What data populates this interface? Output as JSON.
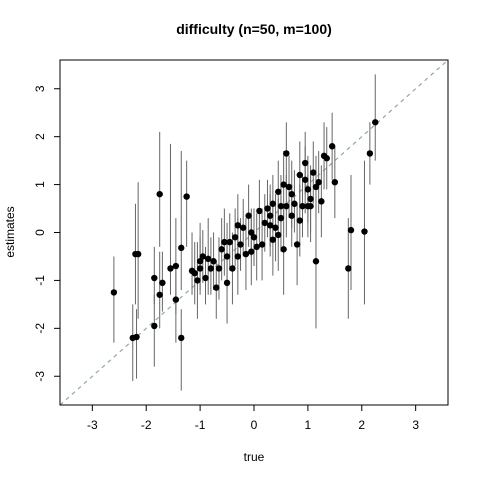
{
  "chart_data": {
    "type": "scatter",
    "title": "difficulty (n=50, m=100)",
    "xlabel": "true",
    "ylabel": "estimates",
    "xlim": [
      -3.6,
      3.6
    ],
    "ylim": [
      -3.6,
      3.6
    ],
    "x_ticks": [
      -3,
      -2,
      -1,
      0,
      1,
      2,
      3
    ],
    "y_ticks": [
      -3,
      -2,
      -1,
      0,
      1,
      2,
      3
    ],
    "x_tick_labels": [
      "-3",
      "-2",
      "-1",
      "0",
      "1",
      "2",
      "3"
    ],
    "y_tick_labels": [
      "-3",
      "-2",
      "-1",
      "0",
      "1",
      "2",
      "3"
    ],
    "grid": false,
    "reference_line": {
      "slope": 1,
      "intercept": 0,
      "style": "dashed",
      "color": "#8fa8a8"
    },
    "point_color": "#000000",
    "errorbar_color": "#666666",
    "points": [
      {
        "x": -2.6,
        "y": -1.25,
        "lo": -2.3,
        "hi": -0.5
      },
      {
        "x": -2.25,
        "y": -2.2,
        "lo": -3.1,
        "hi": -1.5
      },
      {
        "x": -2.18,
        "y": -2.18,
        "lo": -3.05,
        "hi": -1.6
      },
      {
        "x": -2.2,
        "y": -0.45,
        "lo": -1.5,
        "hi": 0.6
      },
      {
        "x": -2.15,
        "y": -0.45,
        "lo": -1.8,
        "hi": 1.05
      },
      {
        "x": -1.85,
        "y": -1.95,
        "lo": -2.8,
        "hi": -1.3
      },
      {
        "x": -1.85,
        "y": -0.95,
        "lo": -1.5,
        "hi": -0.3
      },
      {
        "x": -1.75,
        "y": 0.8,
        "lo": -0.3,
        "hi": 2.1
      },
      {
        "x": -1.75,
        "y": -1.3,
        "lo": -2.0,
        "hi": -0.4
      },
      {
        "x": -1.7,
        "y": -1.05,
        "lo": -1.65,
        "hi": -0.4
      },
      {
        "x": -1.55,
        "y": -0.75,
        "lo": -1.3,
        "hi": 1.85
      },
      {
        "x": -1.45,
        "y": -0.7,
        "lo": -1.7,
        "hi": 0.3
      },
      {
        "x": -1.45,
        "y": -1.4,
        "lo": -2.3,
        "hi": -0.8
      },
      {
        "x": -1.35,
        "y": -0.32,
        "lo": -1.2,
        "hi": 1.7
      },
      {
        "x": -1.35,
        "y": -2.2,
        "lo": -3.3,
        "hi": -1.6
      },
      {
        "x": -1.25,
        "y": 0.75,
        "lo": -0.3,
        "hi": 1.5
      },
      {
        "x": -1.15,
        "y": -0.8,
        "lo": -1.3,
        "hi": 0.0
      },
      {
        "x": -1.1,
        "y": -0.85,
        "lo": -1.5,
        "hi": -0.2
      },
      {
        "x": -1.05,
        "y": -1.0,
        "lo": -1.8,
        "hi": -0.2
      },
      {
        "x": -1.0,
        "y": -0.6,
        "lo": -1.2,
        "hi": 0.2
      },
      {
        "x": -0.95,
        "y": -0.5,
        "lo": -1.05,
        "hi": 0.05
      },
      {
        "x": -0.9,
        "y": -0.95,
        "lo": -1.5,
        "hi": -0.3
      },
      {
        "x": -0.85,
        "y": -0.55,
        "lo": -1.3,
        "hi": 0.3
      },
      {
        "x": -0.8,
        "y": -0.75,
        "lo": -1.3,
        "hi": -0.1
      },
      {
        "x": -0.75,
        "y": -0.6,
        "lo": -1.2,
        "hi": 0.0
      },
      {
        "x": -0.7,
        "y": -1.15,
        "lo": -1.8,
        "hi": -0.6
      },
      {
        "x": -0.65,
        "y": -0.75,
        "lo": -1.4,
        "hi": -0.1
      },
      {
        "x": -0.55,
        "y": -0.2,
        "lo": -0.9,
        "hi": 0.5
      },
      {
        "x": -0.5,
        "y": -0.5,
        "lo": -1.2,
        "hi": 0.2
      },
      {
        "x": -0.5,
        "y": -1.05,
        "lo": -1.9,
        "hi": -0.2
      },
      {
        "x": -0.45,
        "y": -0.2,
        "lo": -0.8,
        "hi": 0.4
      },
      {
        "x": -0.4,
        "y": -0.75,
        "lo": -1.5,
        "hi": 0.0
      },
      {
        "x": -0.35,
        "y": -0.1,
        "lo": -0.7,
        "hi": 0.5
      },
      {
        "x": -0.3,
        "y": -0.5,
        "lo": -1.3,
        "hi": 0.3
      },
      {
        "x": -0.25,
        "y": -0.25,
        "lo": -0.8,
        "hi": 0.3
      },
      {
        "x": -0.2,
        "y": 0.1,
        "lo": -0.5,
        "hi": 0.7
      },
      {
        "x": -0.15,
        "y": -0.45,
        "lo": -1.2,
        "hi": 0.3
      },
      {
        "x": -0.1,
        "y": 0.35,
        "lo": -0.3,
        "hi": 1.0
      },
      {
        "x": -0.05,
        "y": 0.0,
        "lo": -0.5,
        "hi": 0.5
      },
      {
        "x": 0.0,
        "y": -0.1,
        "lo": -0.7,
        "hi": 0.5
      },
      {
        "x": 0.05,
        "y": -0.3,
        "lo": -1.0,
        "hi": 0.4
      },
      {
        "x": 0.1,
        "y": 0.45,
        "lo": -0.2,
        "hi": 1.1
      },
      {
        "x": 0.15,
        "y": -0.25,
        "lo": -1.0,
        "hi": 0.5
      },
      {
        "x": 0.2,
        "y": 0.2,
        "lo": -0.4,
        "hi": 0.8
      },
      {
        "x": 0.25,
        "y": 0.5,
        "lo": -0.1,
        "hi": 1.1
      },
      {
        "x": 0.3,
        "y": 0.15,
        "lo": -0.5,
        "hi": 0.8
      },
      {
        "x": 0.35,
        "y": 0.6,
        "lo": 0.0,
        "hi": 1.2
      },
      {
        "x": 0.4,
        "y": 0.1,
        "lo": -0.6,
        "hi": 0.8
      },
      {
        "x": 0.45,
        "y": 0.85,
        "lo": 0.2,
        "hi": 1.5
      },
      {
        "x": 0.5,
        "y": 0.3,
        "lo": -0.4,
        "hi": 1.0
      },
      {
        "x": 0.55,
        "y": -0.35,
        "lo": -1.3,
        "hi": 0.6
      },
      {
        "x": 0.6,
        "y": 0.55,
        "lo": -0.1,
        "hi": 1.2
      },
      {
        "x": 0.65,
        "y": 0.95,
        "lo": 0.3,
        "hi": 1.6
      },
      {
        "x": 0.7,
        "y": 0.35,
        "lo": -0.3,
        "hi": 1.0
      },
      {
        "x": 0.75,
        "y": 0.6,
        "lo": 0.0,
        "hi": 1.3
      },
      {
        "x": 0.8,
        "y": -0.25,
        "lo": -1.1,
        "hi": 0.6
      },
      {
        "x": 0.85,
        "y": 1.2,
        "lo": 0.5,
        "hi": 1.9
      },
      {
        "x": 0.9,
        "y": 0.55,
        "lo": -0.1,
        "hi": 1.2
      },
      {
        "x": 0.95,
        "y": 1.45,
        "lo": 0.8,
        "hi": 2.1
      },
      {
        "x": 1.0,
        "y": 0.9,
        "lo": 0.2,
        "hi": 1.6
      },
      {
        "x": 1.05,
        "y": 0.7,
        "lo": 0.0,
        "hi": 1.4
      },
      {
        "x": 1.1,
        "y": 1.25,
        "lo": 0.6,
        "hi": 1.9
      },
      {
        "x": 1.15,
        "y": -0.6,
        "lo": -2.0,
        "hi": 0.8
      },
      {
        "x": 1.2,
        "y": 1.05,
        "lo": 0.4,
        "hi": 1.7
      },
      {
        "x": 1.25,
        "y": 0.65,
        "lo": -0.1,
        "hi": 1.4
      },
      {
        "x": 1.3,
        "y": 1.6,
        "lo": 0.9,
        "hi": 2.3
      },
      {
        "x": 1.35,
        "y": 1.55,
        "lo": 0.9,
        "hi": 2.2
      },
      {
        "x": 1.45,
        "y": 1.8,
        "lo": 1.1,
        "hi": 2.5
      },
      {
        "x": 1.5,
        "y": 1.05,
        "lo": 0.3,
        "hi": 1.8
      },
      {
        "x": 1.75,
        "y": -0.75,
        "lo": -1.8,
        "hi": 0.3
      },
      {
        "x": 1.8,
        "y": 0.05,
        "lo": -1.2,
        "hi": 1.2
      },
      {
        "x": 2.05,
        "y": 0.02,
        "lo": -1.5,
        "hi": 1.5
      },
      {
        "x": 2.15,
        "y": 1.65,
        "lo": 1.0,
        "hi": 2.3
      },
      {
        "x": 2.25,
        "y": 2.3,
        "lo": 1.5,
        "hi": 3.3
      },
      {
        "x": 0.6,
        "y": 1.65,
        "lo": 0.9,
        "hi": 2.3
      },
      {
        "x": 0.95,
        "y": 1.1,
        "lo": 0.4,
        "hi": 1.8
      },
      {
        "x": 1.05,
        "y": 0.55,
        "lo": -0.2,
        "hi": 1.3
      },
      {
        "x": 0.3,
        "y": 0.35,
        "lo": -0.3,
        "hi": 1.0
      },
      {
        "x": 0.5,
        "y": 0.55,
        "lo": -0.1,
        "hi": 1.2
      },
      {
        "x": 0.85,
        "y": 0.25,
        "lo": -0.5,
        "hi": 1.0
      },
      {
        "x": -0.6,
        "y": -0.35,
        "lo": -1.0,
        "hi": 0.3
      },
      {
        "x": -0.05,
        "y": -0.4,
        "lo": -1.1,
        "hi": 0.3
      },
      {
        "x": 0.45,
        "y": -0.05,
        "lo": -0.8,
        "hi": 0.7
      },
      {
        "x": 0.7,
        "y": 0.8,
        "lo": 0.1,
        "hi": 1.5
      },
      {
        "x": 1.15,
        "y": 0.95,
        "lo": 0.3,
        "hi": 1.6
      },
      {
        "x": -1.0,
        "y": -0.75,
        "lo": -1.3,
        "hi": -0.1
      },
      {
        "x": -0.3,
        "y": 0.15,
        "lo": -0.5,
        "hi": 0.8
      },
      {
        "x": 0.35,
        "y": -0.15,
        "lo": -0.9,
        "hi": 0.6
      },
      {
        "x": 1.0,
        "y": 0.55,
        "lo": -0.1,
        "hi": 1.2
      },
      {
        "x": 0.55,
        "y": 1.0,
        "lo": 0.3,
        "hi": 1.7
      }
    ]
  }
}
